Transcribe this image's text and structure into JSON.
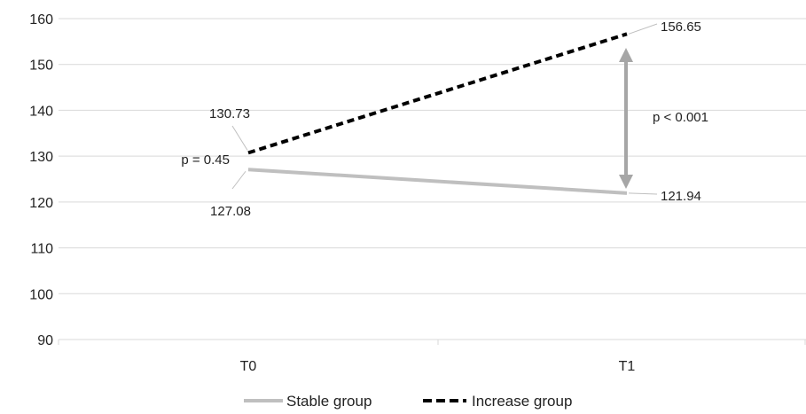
{
  "chart_data": {
    "type": "line",
    "categories": [
      "T0",
      "T1"
    ],
    "ylim": [
      90,
      160
    ],
    "yticks": [
      90,
      100,
      110,
      120,
      130,
      140,
      150,
      160
    ],
    "grid": true,
    "legend_position": "bottom",
    "series": [
      {
        "name": "Stable group",
        "values": [
          127.08,
          121.94
        ],
        "labels": [
          "127.08",
          "121.94"
        ],
        "color": "#bfbfbf",
        "style": "solid"
      },
      {
        "name": "Increase group",
        "values": [
          130.73,
          156.65
        ],
        "labels": [
          "130.73",
          "156.65"
        ],
        "color": "#000000",
        "style": "dashed"
      }
    ],
    "annotations": [
      {
        "text": "p = 0.45",
        "at": "T0"
      },
      {
        "text": "p < 0.001",
        "at": "T1"
      }
    ]
  }
}
